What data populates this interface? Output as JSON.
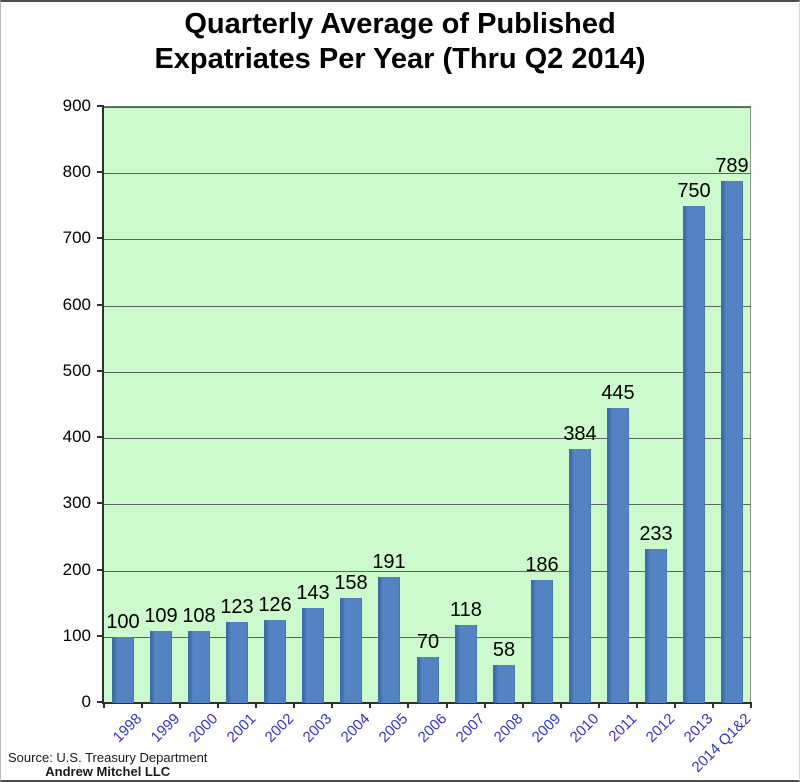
{
  "chart_data": {
    "type": "bar",
    "title": "Quarterly Average of Published Expatriates Per Year (Thru Q2 2014)",
    "title_display": "Quarterly Average of Published\nExpatriates Per Year (Thru Q2 2014)",
    "categories": [
      "1998",
      "1999",
      "2000",
      "2001",
      "2002",
      "2003",
      "2004",
      "2005",
      "2006",
      "2007",
      "2008",
      "2009",
      "2010",
      "2011",
      "2012",
      "2013",
      "2014 Q1&2"
    ],
    "values": [
      100,
      109,
      108,
      123,
      126,
      143,
      158,
      191,
      70,
      118,
      58,
      186,
      384,
      445,
      233,
      750,
      789
    ],
    "xlabel": "",
    "ylabel": "",
    "ylim": [
      0,
      900
    ],
    "yticks": [
      0,
      100,
      200,
      300,
      400,
      500,
      600,
      700,
      800,
      900
    ],
    "grid": true,
    "legend": "none",
    "value_labels_shown": true
  },
  "colors": {
    "bar_fill": "#5383c3",
    "bar_edge": "#3e6ca4",
    "plot_bg": "#ccfacc",
    "gridline": "#5d685d",
    "axis": "#2f2f2f",
    "x_label": "#3333cc",
    "y_label": "#000000",
    "value_label": "#000000",
    "title": "#000000"
  },
  "source": {
    "line1": "Source: U.S. Treasury Department",
    "line2": "Andrew Mitchel LLC"
  }
}
